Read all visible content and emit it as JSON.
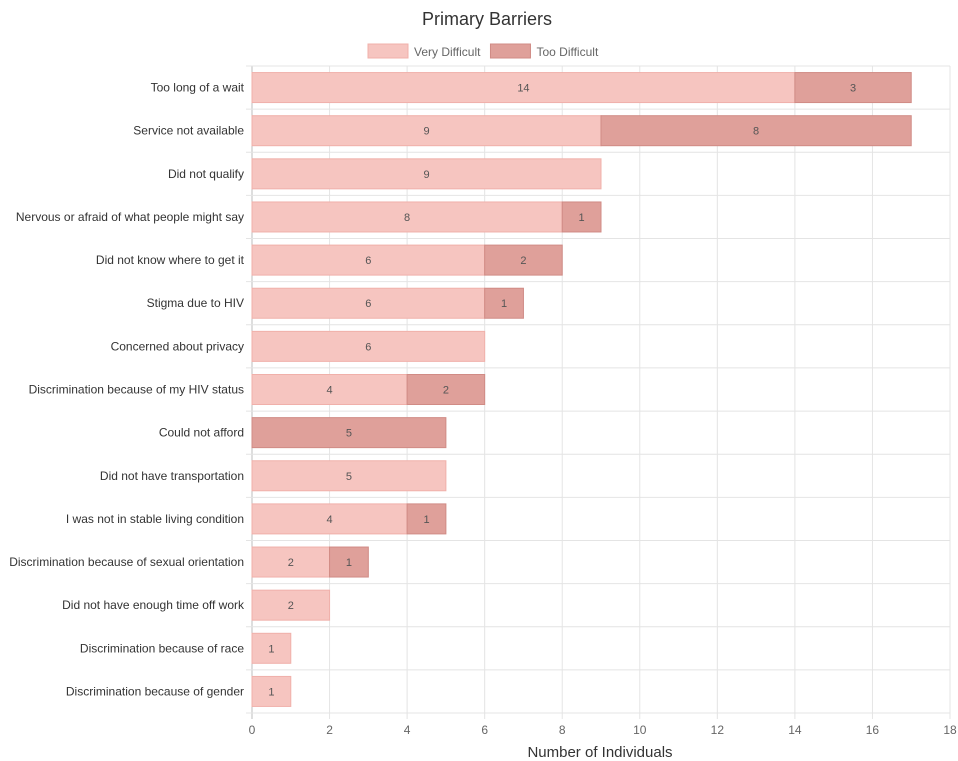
{
  "chart_data": {
    "type": "bar",
    "orientation": "horizontal",
    "stacked": true,
    "title": "Primary Barriers",
    "xlabel": "Number of Individuals",
    "ylabel": "",
    "xlim": [
      0,
      18
    ],
    "x_ticks": [
      "0",
      "2",
      "4",
      "6",
      "8",
      "10",
      "12",
      "14",
      "16",
      "18"
    ],
    "grid": true,
    "legend_position": "top-center",
    "categories": [
      "Too long of a wait",
      "Service not available",
      "Did not qualify",
      "Nervous or afraid of what people might say",
      "Did not know where to get it",
      "Stigma due to HIV",
      "Concerned about privacy",
      "Discrimination because of my HIV status",
      "Could not afford",
      "Did not have transportation",
      "I was not in stable living condition",
      "Discrimination because of sexual orientation",
      "Did not have enough time off work",
      "Discrimination because of race",
      "Discrimination because of gender"
    ],
    "series": [
      {
        "name": "Very Difficult",
        "color": "#f6c5c0",
        "border": "#f0b0aa",
        "values": [
          14,
          9,
          9,
          8,
          6,
          6,
          6,
          4,
          0,
          5,
          4,
          2,
          2,
          1,
          1
        ],
        "labels": [
          "14",
          "9",
          "9",
          "8",
          "6",
          "6",
          "6",
          "4",
          "",
          "5",
          "4",
          "2",
          "2",
          "1",
          "1"
        ]
      },
      {
        "name": "Too Difficult",
        "color": "#dfa09a",
        "border": "#d08b85",
        "values": [
          3,
          8,
          0,
          1,
          2,
          1,
          0,
          2,
          5,
          0,
          1,
          1,
          0,
          0,
          0
        ],
        "labels": [
          "3",
          "8",
          "",
          "1",
          "2",
          "1",
          "",
          "2",
          "5",
          "",
          "1",
          "1",
          "",
          "",
          ""
        ]
      }
    ]
  }
}
